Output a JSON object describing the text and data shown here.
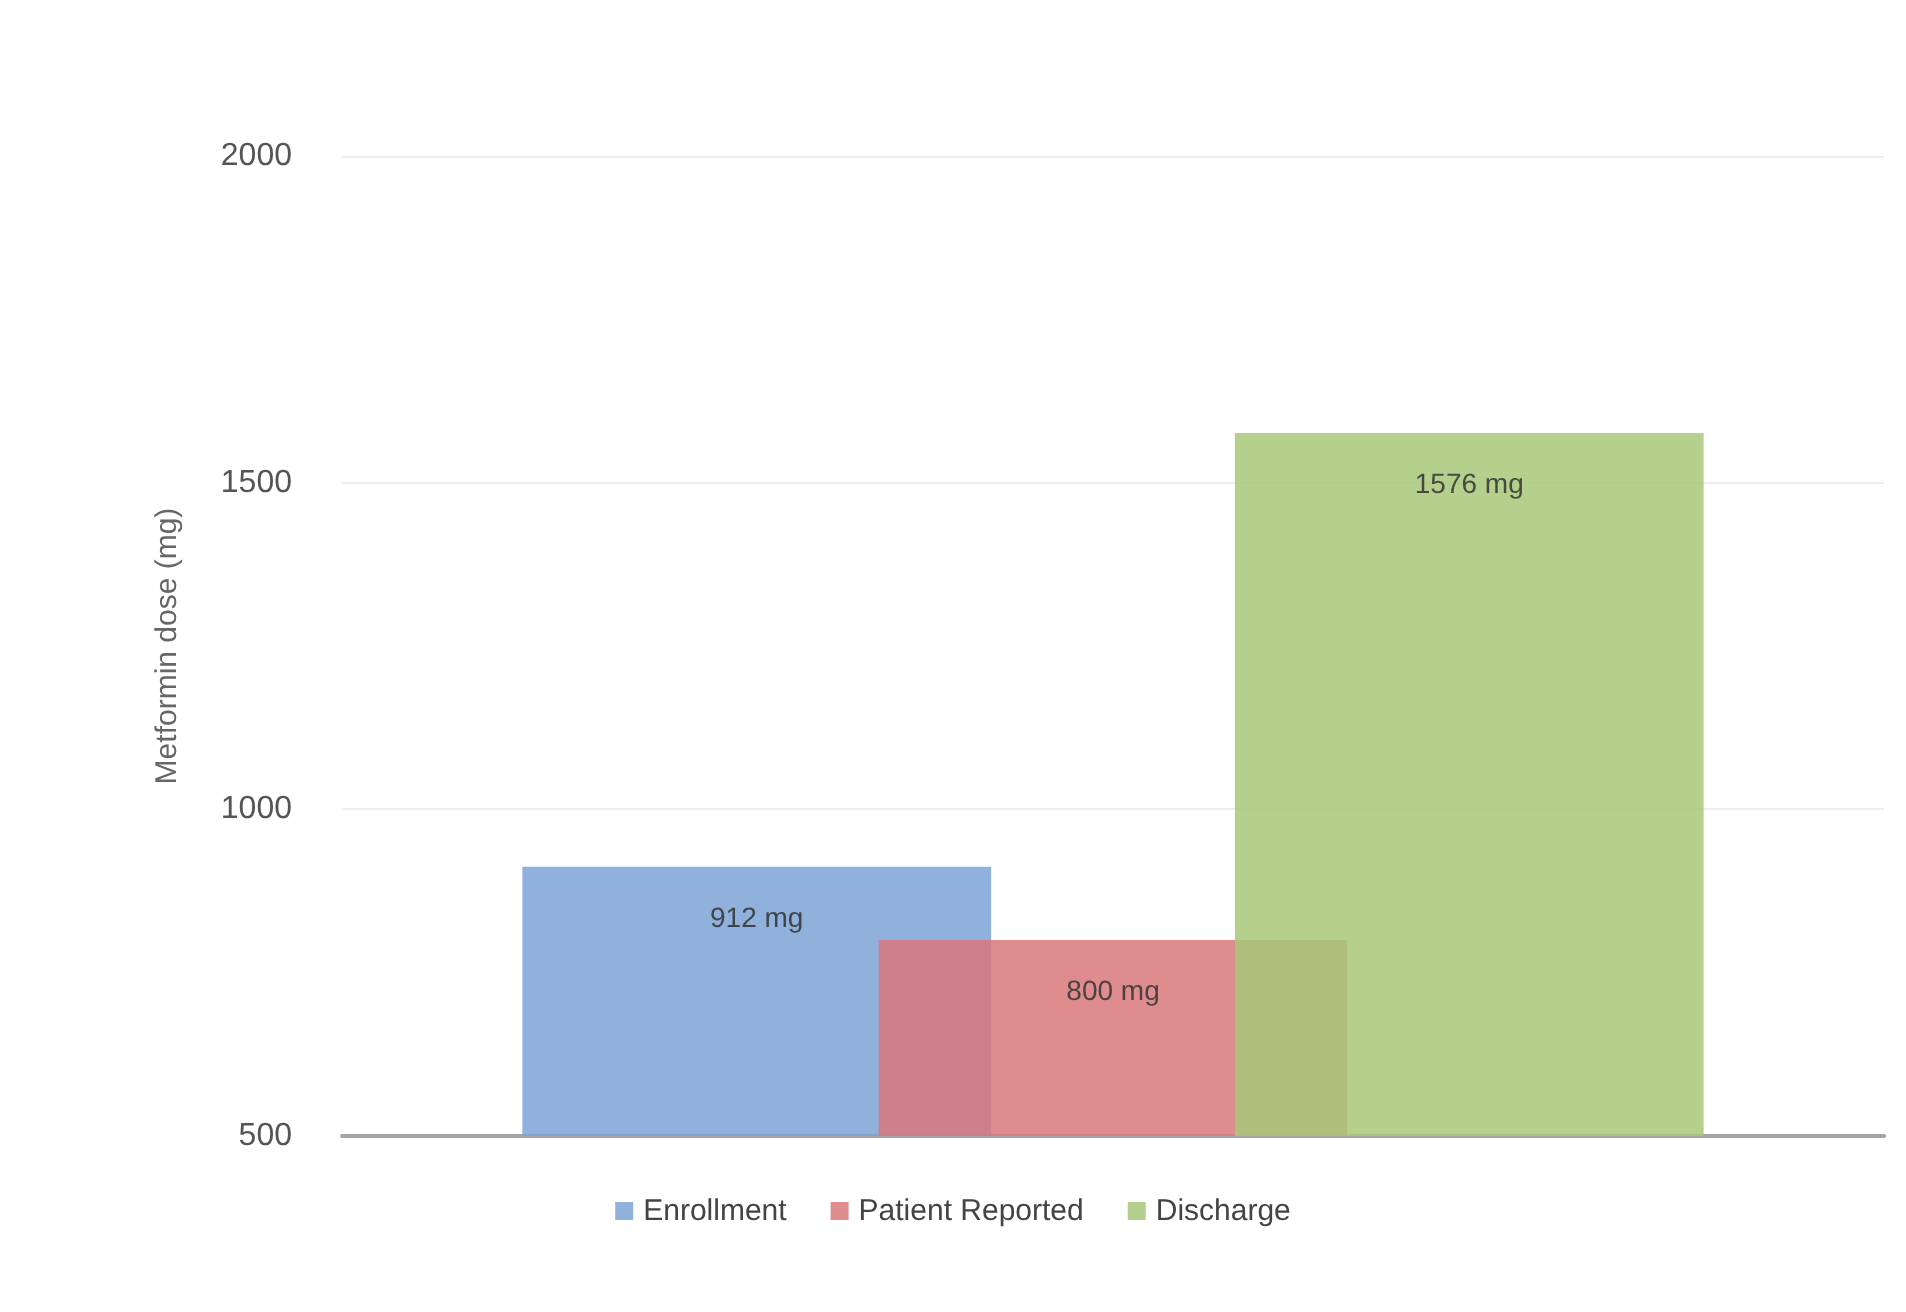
{
  "chart_data": {
    "type": "bar",
    "ylabel": "Metformin dose (mg)",
    "categories": [
      null
    ],
    "series": [
      {
        "name": "Enrollment",
        "color": "#7ba3d6",
        "values": [
          912
        ],
        "value_labels": [
          "912 mg"
        ]
      },
      {
        "name": "Patient Reported",
        "color": "#d9787b",
        "values": [
          800
        ],
        "value_labels": [
          "800 mg"
        ]
      },
      {
        "name": "Discharge",
        "color": "#a8c879",
        "values": [
          1576
        ],
        "value_labels": [
          "1576 mg"
        ]
      }
    ],
    "ylim": [
      500,
      2000
    ],
    "yticks": [
      500,
      1000,
      1500,
      2000
    ],
    "grid": "y",
    "legend": "bottom"
  }
}
